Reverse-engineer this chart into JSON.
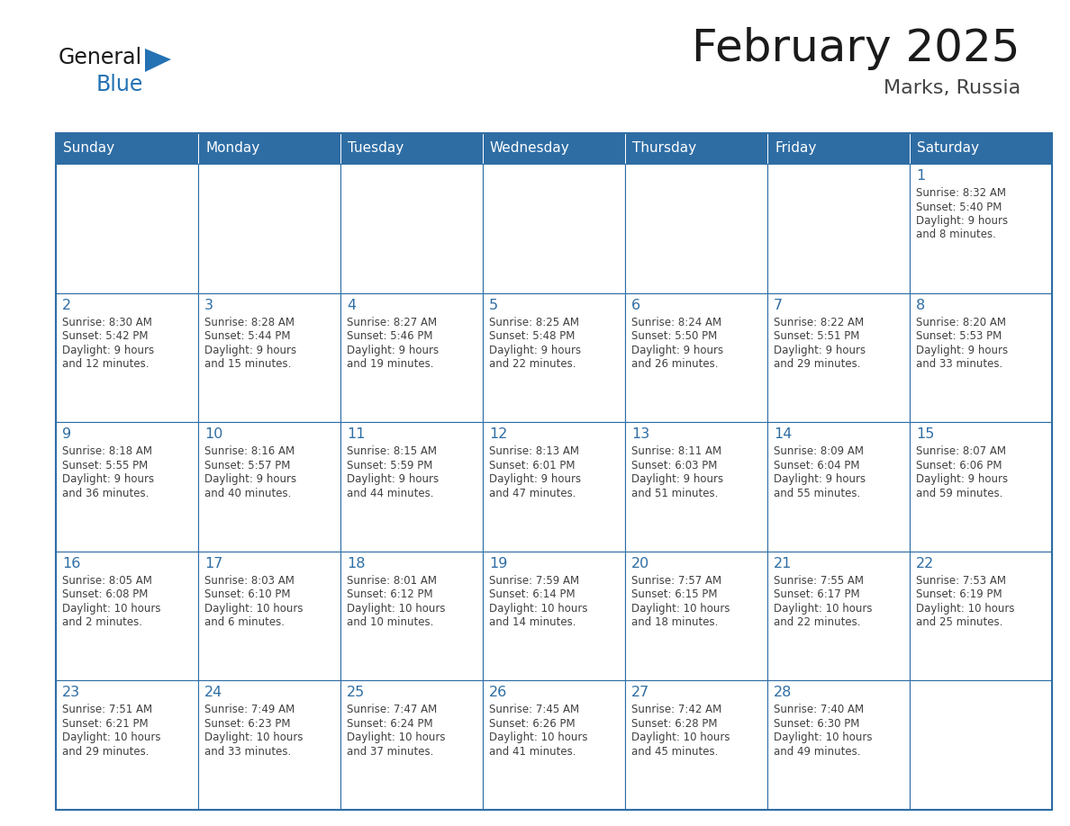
{
  "title": "February 2025",
  "subtitle": "Marks, Russia",
  "header_bg": "#2E6DA4",
  "header_text_color": "#FFFFFF",
  "days_of_week": [
    "Sunday",
    "Monday",
    "Tuesday",
    "Wednesday",
    "Thursday",
    "Friday",
    "Saturday"
  ],
  "cell_border_color": "#2E6DA4",
  "cell_bg": "#FFFFFF",
  "day_number_color": "#2E6DA4",
  "info_text_color": "#404040",
  "title_color": "#1a1a1a",
  "subtitle_color": "#444444",
  "logo_general_color": "#1a1a1a",
  "logo_blue_color": "#2471B3",
  "calendar_data": [
    [
      null,
      null,
      null,
      null,
      null,
      null,
      {
        "day": 1,
        "sunrise": "8:32 AM",
        "sunset": "5:40 PM",
        "daylight": "9 hours and 8 minutes."
      }
    ],
    [
      {
        "day": 2,
        "sunrise": "8:30 AM",
        "sunset": "5:42 PM",
        "daylight": "9 hours and 12 minutes."
      },
      {
        "day": 3,
        "sunrise": "8:28 AM",
        "sunset": "5:44 PM",
        "daylight": "9 hours and 15 minutes."
      },
      {
        "day": 4,
        "sunrise": "8:27 AM",
        "sunset": "5:46 PM",
        "daylight": "9 hours and 19 minutes."
      },
      {
        "day": 5,
        "sunrise": "8:25 AM",
        "sunset": "5:48 PM",
        "daylight": "9 hours and 22 minutes."
      },
      {
        "day": 6,
        "sunrise": "8:24 AM",
        "sunset": "5:50 PM",
        "daylight": "9 hours and 26 minutes."
      },
      {
        "day": 7,
        "sunrise": "8:22 AM",
        "sunset": "5:51 PM",
        "daylight": "9 hours and 29 minutes."
      },
      {
        "day": 8,
        "sunrise": "8:20 AM",
        "sunset": "5:53 PM",
        "daylight": "9 hours and 33 minutes."
      }
    ],
    [
      {
        "day": 9,
        "sunrise": "8:18 AM",
        "sunset": "5:55 PM",
        "daylight": "9 hours and 36 minutes."
      },
      {
        "day": 10,
        "sunrise": "8:16 AM",
        "sunset": "5:57 PM",
        "daylight": "9 hours and 40 minutes."
      },
      {
        "day": 11,
        "sunrise": "8:15 AM",
        "sunset": "5:59 PM",
        "daylight": "9 hours and 44 minutes."
      },
      {
        "day": 12,
        "sunrise": "8:13 AM",
        "sunset": "6:01 PM",
        "daylight": "9 hours and 47 minutes."
      },
      {
        "day": 13,
        "sunrise": "8:11 AM",
        "sunset": "6:03 PM",
        "daylight": "9 hours and 51 minutes."
      },
      {
        "day": 14,
        "sunrise": "8:09 AM",
        "sunset": "6:04 PM",
        "daylight": "9 hours and 55 minutes."
      },
      {
        "day": 15,
        "sunrise": "8:07 AM",
        "sunset": "6:06 PM",
        "daylight": "9 hours and 59 minutes."
      }
    ],
    [
      {
        "day": 16,
        "sunrise": "8:05 AM",
        "sunset": "6:08 PM",
        "daylight": "10 hours and 2 minutes."
      },
      {
        "day": 17,
        "sunrise": "8:03 AM",
        "sunset": "6:10 PM",
        "daylight": "10 hours and 6 minutes."
      },
      {
        "day": 18,
        "sunrise": "8:01 AM",
        "sunset": "6:12 PM",
        "daylight": "10 hours and 10 minutes."
      },
      {
        "day": 19,
        "sunrise": "7:59 AM",
        "sunset": "6:14 PM",
        "daylight": "10 hours and 14 minutes."
      },
      {
        "day": 20,
        "sunrise": "7:57 AM",
        "sunset": "6:15 PM",
        "daylight": "10 hours and 18 minutes."
      },
      {
        "day": 21,
        "sunrise": "7:55 AM",
        "sunset": "6:17 PM",
        "daylight": "10 hours and 22 minutes."
      },
      {
        "day": 22,
        "sunrise": "7:53 AM",
        "sunset": "6:19 PM",
        "daylight": "10 hours and 25 minutes."
      }
    ],
    [
      {
        "day": 23,
        "sunrise": "7:51 AM",
        "sunset": "6:21 PM",
        "daylight": "10 hours and 29 minutes."
      },
      {
        "day": 24,
        "sunrise": "7:49 AM",
        "sunset": "6:23 PM",
        "daylight": "10 hours and 33 minutes."
      },
      {
        "day": 25,
        "sunrise": "7:47 AM",
        "sunset": "6:24 PM",
        "daylight": "10 hours and 37 minutes."
      },
      {
        "day": 26,
        "sunrise": "7:45 AM",
        "sunset": "6:26 PM",
        "daylight": "10 hours and 41 minutes."
      },
      {
        "day": 27,
        "sunrise": "7:42 AM",
        "sunset": "6:28 PM",
        "daylight": "10 hours and 45 minutes."
      },
      {
        "day": 28,
        "sunrise": "7:40 AM",
        "sunset": "6:30 PM",
        "daylight": "10 hours and 49 minutes."
      },
      null
    ]
  ],
  "fig_width": 11.88,
  "fig_height": 9.18
}
